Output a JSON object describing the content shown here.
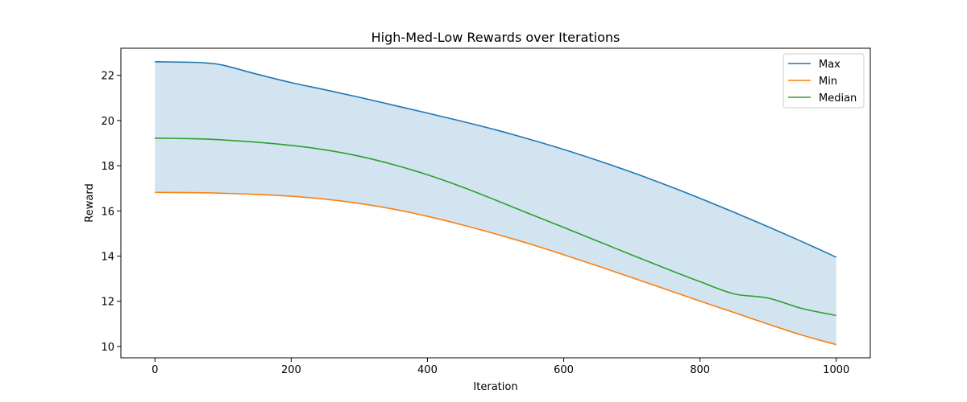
{
  "chart_data": {
    "type": "line",
    "title": "High-Med-Low Rewards over Iterations",
    "xlabel": "Iteration",
    "ylabel": "Reward",
    "xlim": [
      -50,
      1050
    ],
    "ylim": [
      9.5,
      23.2
    ],
    "xticks": [
      0,
      200,
      400,
      600,
      800,
      1000
    ],
    "yticks": [
      10,
      12,
      14,
      16,
      18,
      20,
      22
    ],
    "grid": false,
    "legend_position": "top-right",
    "x": [
      0,
      50,
      75,
      100,
      150,
      200,
      250,
      300,
      350,
      400,
      450,
      500,
      550,
      600,
      650,
      700,
      750,
      800,
      850,
      900,
      950,
      1000
    ],
    "series": [
      {
        "name": "Max",
        "color": "#1f77b4",
        "values": [
          22.6,
          22.58,
          22.55,
          22.45,
          22.05,
          21.68,
          21.36,
          21.03,
          20.68,
          20.33,
          19.97,
          19.59,
          19.17,
          18.72,
          18.23,
          17.71,
          17.15,
          16.56,
          15.94,
          15.3,
          14.64,
          13.95
        ]
      },
      {
        "name": "Min",
        "color": "#ff7f0e",
        "values": [
          16.82,
          16.81,
          16.8,
          16.78,
          16.73,
          16.65,
          16.52,
          16.33,
          16.08,
          15.76,
          15.39,
          14.98,
          14.54,
          14.06,
          13.56,
          13.05,
          12.53,
          12.01,
          11.5,
          10.99,
          10.5,
          10.08
        ]
      },
      {
        "name": "Median",
        "color": "#2ca02c",
        "values": [
          19.22,
          19.2,
          19.18,
          19.14,
          19.04,
          18.9,
          18.7,
          18.42,
          18.05,
          17.6,
          17.07,
          16.48,
          15.87,
          15.27,
          14.66,
          14.05,
          13.45,
          12.87,
          12.33,
          12.14,
          11.68,
          11.37
        ]
      }
    ],
    "band": {
      "between": [
        "Min",
        "Max"
      ],
      "color": "#1f77b4",
      "opacity": 0.2
    }
  }
}
